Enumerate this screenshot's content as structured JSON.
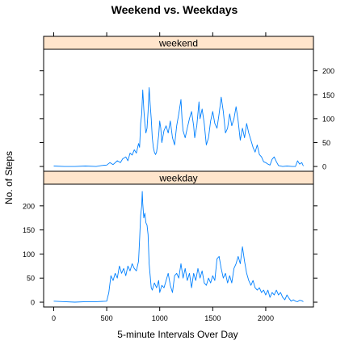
{
  "chart_data": {
    "type": "line",
    "title": "Weekend vs. Weekdays",
    "xlabel": "5-minute Intervals Over Day",
    "ylabel": "No. of Steps",
    "xlim": [
      -95,
      2450
    ],
    "ylim": [
      -10,
      245
    ],
    "x_ticks": [
      0,
      500,
      1000,
      1500,
      2000
    ],
    "y_ticks": [
      0,
      50,
      100,
      150,
      200
    ],
    "grid": false,
    "line_color": "#0080ff",
    "strip_color": "#ffe5cc",
    "panels": [
      {
        "name": "weekend",
        "points": [
          [
            0,
            1
          ],
          [
            100,
            0
          ],
          [
            200,
            0
          ],
          [
            300,
            1
          ],
          [
            400,
            0
          ],
          [
            450,
            2
          ],
          [
            500,
            3
          ],
          [
            530,
            8
          ],
          [
            560,
            4
          ],
          [
            600,
            12
          ],
          [
            630,
            8
          ],
          [
            650,
            16
          ],
          [
            680,
            20
          ],
          [
            700,
            12
          ],
          [
            720,
            28
          ],
          [
            740,
            24
          ],
          [
            760,
            35
          ],
          [
            780,
            28
          ],
          [
            800,
            48
          ],
          [
            810,
            40
          ],
          [
            820,
            90
          ],
          [
            830,
            110
          ],
          [
            840,
            160
          ],
          [
            850,
            120
          ],
          [
            860,
            90
          ],
          [
            870,
            70
          ],
          [
            880,
            80
          ],
          [
            890,
            115
          ],
          [
            900,
            165
          ],
          [
            910,
            130
          ],
          [
            920,
            100
          ],
          [
            930,
            60
          ],
          [
            940,
            40
          ],
          [
            950,
            30
          ],
          [
            960,
            25
          ],
          [
            970,
            30
          ],
          [
            990,
            65
          ],
          [
            1000,
            95
          ],
          [
            1010,
            80
          ],
          [
            1020,
            50
          ],
          [
            1040,
            75
          ],
          [
            1060,
            85
          ],
          [
            1080,
            70
          ],
          [
            1100,
            95
          ],
          [
            1120,
            60
          ],
          [
            1140,
            45
          ],
          [
            1160,
            85
          ],
          [
            1180,
            110
          ],
          [
            1200,
            140
          ],
          [
            1210,
            100
          ],
          [
            1220,
            75
          ],
          [
            1240,
            60
          ],
          [
            1260,
            80
          ],
          [
            1280,
            100
          ],
          [
            1300,
            115
          ],
          [
            1320,
            85
          ],
          [
            1330,
            60
          ],
          [
            1350,
            85
          ],
          [
            1370,
            135
          ],
          [
            1380,
            100
          ],
          [
            1400,
            120
          ],
          [
            1420,
            90
          ],
          [
            1440,
            45
          ],
          [
            1460,
            60
          ],
          [
            1480,
            95
          ],
          [
            1500,
            115
          ],
          [
            1520,
            90
          ],
          [
            1540,
            80
          ],
          [
            1560,
            110
          ],
          [
            1580,
            145
          ],
          [
            1600,
            115
          ],
          [
            1620,
            70
          ],
          [
            1640,
            80
          ],
          [
            1660,
            110
          ],
          [
            1680,
            85
          ],
          [
            1700,
            100
          ],
          [
            1720,
            125
          ],
          [
            1740,
            95
          ],
          [
            1760,
            55
          ],
          [
            1780,
            80
          ],
          [
            1800,
            60
          ],
          [
            1820,
            90
          ],
          [
            1840,
            70
          ],
          [
            1860,
            55
          ],
          [
            1880,
            40
          ],
          [
            1900,
            30
          ],
          [
            1920,
            45
          ],
          [
            1940,
            25
          ],
          [
            1960,
            20
          ],
          [
            1980,
            10
          ],
          [
            2000,
            8
          ],
          [
            2020,
            5
          ],
          [
            2040,
            3
          ],
          [
            2060,
            15
          ],
          [
            2080,
            20
          ],
          [
            2100,
            10
          ],
          [
            2120,
            2
          ],
          [
            2160,
            0
          ],
          [
            2200,
            1
          ],
          [
            2250,
            0
          ],
          [
            2280,
            0
          ],
          [
            2300,
            12
          ],
          [
            2320,
            5
          ],
          [
            2340,
            8
          ],
          [
            2355,
            1
          ]
        ]
      },
      {
        "name": "weekday",
        "points": [
          [
            0,
            2
          ],
          [
            100,
            1
          ],
          [
            200,
            0
          ],
          [
            300,
            1
          ],
          [
            400,
            1
          ],
          [
            500,
            2
          ],
          [
            520,
            20
          ],
          [
            540,
            55
          ],
          [
            560,
            45
          ],
          [
            580,
            60
          ],
          [
            600,
            50
          ],
          [
            620,
            75
          ],
          [
            640,
            60
          ],
          [
            660,
            70
          ],
          [
            680,
            55
          ],
          [
            700,
            75
          ],
          [
            720,
            65
          ],
          [
            740,
            80
          ],
          [
            760,
            70
          ],
          [
            780,
            65
          ],
          [
            800,
            85
          ],
          [
            810,
            130
          ],
          [
            820,
            180
          ],
          [
            830,
            200
          ],
          [
            835,
            230
          ],
          [
            840,
            205
          ],
          [
            850,
            175
          ],
          [
            860,
            185
          ],
          [
            870,
            165
          ],
          [
            880,
            160
          ],
          [
            890,
            140
          ],
          [
            900,
            80
          ],
          [
            910,
            55
          ],
          [
            920,
            30
          ],
          [
            930,
            25
          ],
          [
            950,
            40
          ],
          [
            970,
            30
          ],
          [
            990,
            45
          ],
          [
            1000,
            20
          ],
          [
            1020,
            35
          ],
          [
            1040,
            30
          ],
          [
            1060,
            45
          ],
          [
            1080,
            60
          ],
          [
            1100,
            35
          ],
          [
            1120,
            20
          ],
          [
            1140,
            55
          ],
          [
            1160,
            60
          ],
          [
            1180,
            50
          ],
          [
            1200,
            80
          ],
          [
            1220,
            50
          ],
          [
            1240,
            70
          ],
          [
            1260,
            45
          ],
          [
            1280,
            60
          ],
          [
            1300,
            30
          ],
          [
            1320,
            60
          ],
          [
            1340,
            45
          ],
          [
            1360,
            70
          ],
          [
            1380,
            50
          ],
          [
            1400,
            65
          ],
          [
            1420,
            40
          ],
          [
            1440,
            35
          ],
          [
            1460,
            50
          ],
          [
            1480,
            40
          ],
          [
            1500,
            55
          ],
          [
            1520,
            45
          ],
          [
            1540,
            90
          ],
          [
            1560,
            95
          ],
          [
            1580,
            70
          ],
          [
            1600,
            50
          ],
          [
            1620,
            60
          ],
          [
            1640,
            40
          ],
          [
            1660,
            55
          ],
          [
            1680,
            40
          ],
          [
            1700,
            70
          ],
          [
            1720,
            80
          ],
          [
            1740,
            95
          ],
          [
            1760,
            80
          ],
          [
            1780,
            115
          ],
          [
            1790,
            100
          ],
          [
            1800,
            85
          ],
          [
            1820,
            60
          ],
          [
            1840,
            45
          ],
          [
            1860,
            35
          ],
          [
            1880,
            45
          ],
          [
            1900,
            30
          ],
          [
            1920,
            25
          ],
          [
            1940,
            30
          ],
          [
            1960,
            20
          ],
          [
            1980,
            25
          ],
          [
            2000,
            15
          ],
          [
            2020,
            25
          ],
          [
            2040,
            10
          ],
          [
            2060,
            20
          ],
          [
            2080,
            15
          ],
          [
            2100,
            25
          ],
          [
            2120,
            15
          ],
          [
            2140,
            20
          ],
          [
            2160,
            10
          ],
          [
            2180,
            5
          ],
          [
            2200,
            15
          ],
          [
            2220,
            8
          ],
          [
            2240,
            2
          ],
          [
            2260,
            5
          ],
          [
            2280,
            2
          ],
          [
            2300,
            1
          ],
          [
            2320,
            4
          ],
          [
            2340,
            3
          ],
          [
            2355,
            1
          ]
        ]
      }
    ]
  }
}
